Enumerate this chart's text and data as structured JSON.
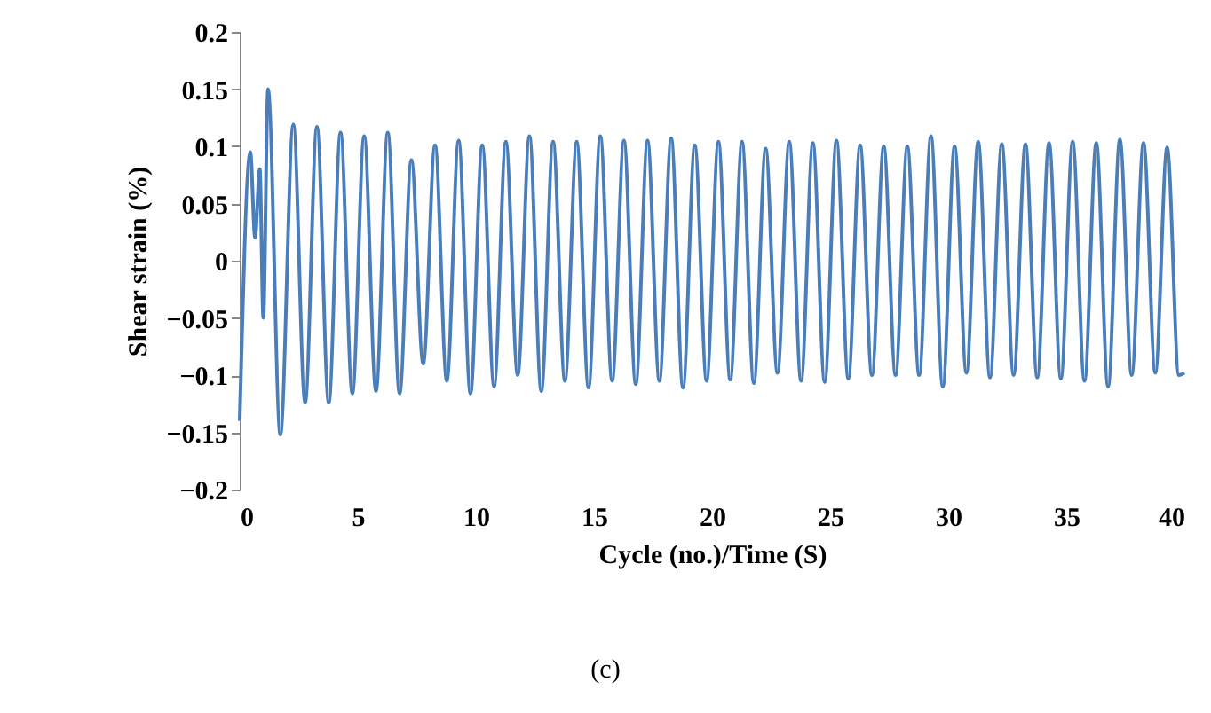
{
  "chart_data": {
    "type": "line",
    "xlabel": "Cycle (no.)/Time (S)",
    "ylabel": "Shear strain (%)",
    "annotations": [
      "(c)"
    ],
    "xlim": [
      0,
      40
    ],
    "xticks": [
      0,
      5,
      10,
      15,
      20,
      25,
      30,
      35,
      40
    ],
    "ylim": [
      -0.2,
      0.2
    ],
    "yticks": [
      -0.2,
      -0.15,
      -0.1,
      -0.05,
      0,
      0.05,
      0.1,
      0.15,
      0.2
    ],
    "grid": false,
    "legend": false,
    "marker": "none",
    "line_style": "solid",
    "x": [
      0,
      0.45,
      0.65,
      0.85,
      1.0,
      1.2,
      1.72,
      2.27,
      2.77,
      3.27,
      3.77,
      4.27,
      4.77,
      5.27,
      5.77,
      6.27,
      6.77,
      7.27,
      7.77,
      8.27,
      8.77,
      9.27,
      9.77,
      10.27,
      10.77,
      11.27,
      11.77,
      12.27,
      12.77,
      13.27,
      13.77,
      14.27,
      14.77,
      15.27,
      15.77,
      16.27,
      16.77,
      17.27,
      17.77,
      18.27,
      18.77,
      19.27,
      19.77,
      20.27,
      20.77,
      21.27,
      21.77,
      22.27,
      22.77,
      23.27,
      23.77,
      24.27,
      24.77,
      25.27,
      25.77,
      26.27,
      26.77,
      27.27,
      27.77,
      28.27,
      28.77,
      29.27,
      29.77,
      30.27,
      30.77,
      31.27,
      31.77,
      32.27,
      32.77,
      33.27,
      33.77,
      34.27,
      34.77,
      35.27,
      35.77,
      36.27,
      36.77,
      37.27,
      37.77,
      38.27,
      38.77,
      39.27,
      39.77,
      40
    ],
    "series": [
      {
        "color": "#4a7ebb",
        "values": [
          -0.14,
          0.095,
          0.02,
          0.08,
          -0.05,
          0.15,
          -0.152,
          0.119,
          -0.124,
          0.117,
          -0.124,
          0.112,
          -0.116,
          0.109,
          -0.114,
          0.112,
          -0.116,
          0.088,
          -0.09,
          0.101,
          -0.105,
          0.105,
          -0.116,
          0.101,
          -0.11,
          0.104,
          -0.1,
          0.109,
          -0.114,
          0.104,
          -0.105,
          0.104,
          -0.111,
          0.109,
          -0.105,
          0.105,
          -0.108,
          0.105,
          -0.105,
          0.107,
          -0.111,
          0.101,
          -0.105,
          0.104,
          -0.104,
          0.104,
          -0.107,
          0.098,
          -0.098,
          0.104,
          -0.105,
          0.103,
          -0.106,
          0.105,
          -0.103,
          0.101,
          -0.1,
          0.1,
          -0.1,
          0.1,
          -0.1,
          0.109,
          -0.11,
          0.1,
          -0.098,
          0.104,
          -0.102,
          0.102,
          -0.1,
          0.102,
          -0.102,
          0.103,
          -0.103,
          0.104,
          -0.105,
          0.103,
          -0.11,
          0.106,
          -0.1,
          0.103,
          -0.098,
          0.099,
          -0.1,
          -0.098
        ]
      }
    ]
  }
}
